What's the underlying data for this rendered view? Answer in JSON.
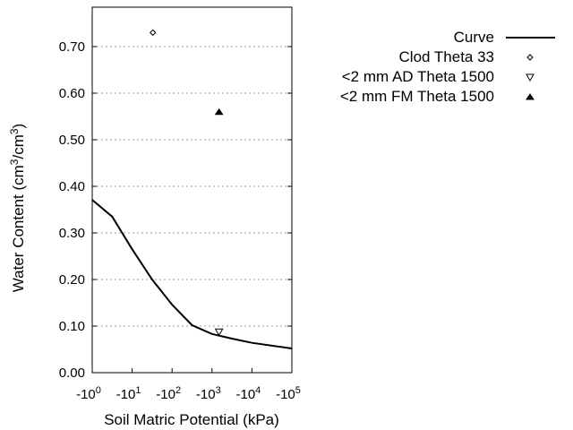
{
  "chart_data": {
    "type": "line",
    "title": "",
    "xlabel": "Soil Matric Potential (kPa)",
    "ylabel": "Water Content (cm3/cm3)",
    "ylabel_parts": {
      "pre": "Water Content (cm",
      "sup1": "3",
      "mid": "/cm",
      "sup2": "3",
      "post": ")"
    },
    "x_scale": "log",
    "xlim": [
      1,
      100000
    ],
    "ylim": [
      0,
      0.75
    ],
    "x_ticks": [
      {
        "base": "-10",
        "exp": "0"
      },
      {
        "base": "-10",
        "exp": "1"
      },
      {
        "base": "-10",
        "exp": "2"
      },
      {
        "base": "-10",
        "exp": "3"
      },
      {
        "base": "-10",
        "exp": "4"
      },
      {
        "base": "-10",
        "exp": "5"
      }
    ],
    "y_ticks": [
      "0.00",
      "0.10",
      "0.20",
      "0.30",
      "0.40",
      "0.50",
      "0.60",
      "0.70"
    ],
    "grid": "horizontal dotted",
    "legend_position": "right",
    "series": [
      {
        "name": "Curve",
        "kind": "line",
        "color": "#000000",
        "x": [
          1,
          3.16,
          10,
          31.6,
          100,
          316,
          1000,
          3160,
          10000,
          100000
        ],
        "y": [
          0.371,
          0.335,
          0.265,
          0.2,
          0.146,
          0.102,
          0.083,
          0.073,
          0.064,
          0.052
        ]
      },
      {
        "name": "Clod Theta 33",
        "kind": "marker",
        "marker": "diamond-open",
        "x": [
          33
        ],
        "y": [
          0.73
        ]
      },
      {
        "name": "<2 mm AD Theta 1500",
        "kind": "marker",
        "marker": "triangle-down-open",
        "x": [
          1500
        ],
        "y": [
          0.088
        ]
      },
      {
        "name": "<2 mm FM Theta 1500",
        "kind": "marker",
        "marker": "triangle-up-filled",
        "x": [
          1500
        ],
        "y": [
          0.56
        ]
      }
    ]
  }
}
